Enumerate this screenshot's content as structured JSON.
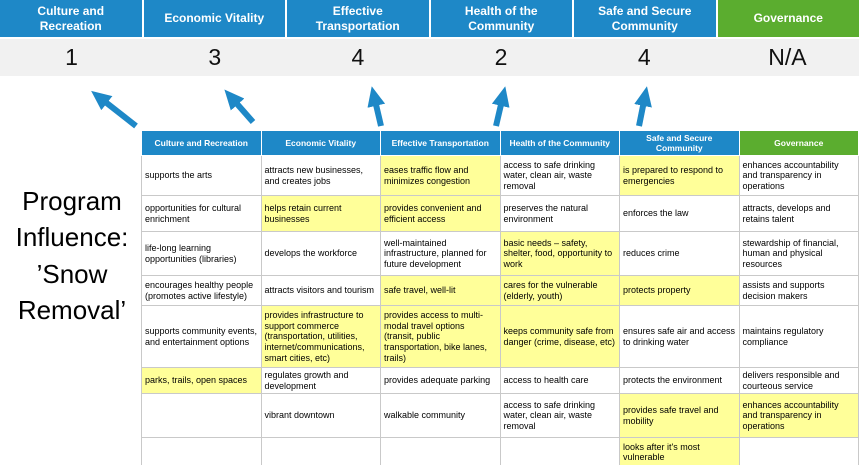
{
  "title": "Program Influence: ’Snow Removal’",
  "colors": {
    "pillar_blue": "#1E88C7",
    "pillar_green": "#5BAD2F",
    "highlight_yellow": "#FFFF99",
    "score_band_gray": "#F1F1F1",
    "arrow_blue": "#1E88C7"
  },
  "top": {
    "columns": [
      {
        "label": "Culture and Recreation",
        "score": "1"
      },
      {
        "label": "Economic Vitality",
        "score": "3"
      },
      {
        "label": "Effective Transportation",
        "score": "4"
      },
      {
        "label": "Health of the Community",
        "score": "2"
      },
      {
        "label": "Safe and Secure Community",
        "score": "4"
      },
      {
        "label": "Governance",
        "score": "N/A"
      }
    ]
  },
  "matrix": {
    "headers": [
      "Culture and Recreation",
      "Economic Vitality",
      "Effective Transportation",
      "Health of the Community",
      "Safe and Secure Community",
      "Governance"
    ],
    "rows": [
      [
        {
          "text": "supports the arts",
          "hl": false
        },
        {
          "text": "attracts new businesses, and creates jobs",
          "hl": false
        },
        {
          "text": "eases traffic flow and minimizes congestion",
          "hl": true
        },
        {
          "text": "access to safe drinking water, clean air, waste removal",
          "hl": false
        },
        {
          "text": "is prepared to respond to emergencies",
          "hl": true
        },
        {
          "text": "enhances accountability and transparency in operations",
          "hl": false
        }
      ],
      [
        {
          "text": "opportunities for cultural enrichment",
          "hl": false
        },
        {
          "text": "helps retain current businesses",
          "hl": true
        },
        {
          "text": "provides convenient and efficient access",
          "hl": true
        },
        {
          "text": "preserves the natural environment",
          "hl": false
        },
        {
          "text": "enforces the law",
          "hl": false
        },
        {
          "text": "attracts, develops and retains talent",
          "hl": false
        }
      ],
      [
        {
          "text": "life-long learning opportunities (libraries)",
          "hl": false
        },
        {
          "text": "develops the workforce",
          "hl": false
        },
        {
          "text": "well-maintained infrastructure, planned for future development",
          "hl": false
        },
        {
          "text": "basic needs – safety, shelter, food, opportunity to work",
          "hl": true
        },
        {
          "text": "reduces crime",
          "hl": false
        },
        {
          "text": "stewardship of financial, human and physical resources",
          "hl": false
        }
      ],
      [
        {
          "text": "encourages healthy people (promotes active lifestyle)",
          "hl": false
        },
        {
          "text": "attracts visitors and tourism",
          "hl": false
        },
        {
          "text": "safe travel, well-lit",
          "hl": true
        },
        {
          "text": "cares for the vulnerable (elderly, youth)",
          "hl": true
        },
        {
          "text": "protects property",
          "hl": true
        },
        {
          "text": "assists and supports decision makers",
          "hl": false
        }
      ],
      [
        {
          "text": "supports community events, and entertainment options",
          "hl": false
        },
        {
          "text": "provides infrastructure to support commerce (transportation, utilities, internet/communications, smart cities, etc)",
          "hl": true
        },
        {
          "text": "provides access to multi-modal travel options (transit, public transportation, bike lanes, trails)",
          "hl": true
        },
        {
          "text": "keeps community safe from danger (crime, disease, etc)",
          "hl": true
        },
        {
          "text": "ensures safe air and access to drinking water",
          "hl": false
        },
        {
          "text": "maintains regulatory compliance",
          "hl": false
        }
      ],
      [
        {
          "text": "parks, trails, open spaces",
          "hl": true
        },
        {
          "text": "regulates growth and development",
          "hl": false
        },
        {
          "text": "provides adequate parking",
          "hl": false
        },
        {
          "text": "access to health care",
          "hl": false
        },
        {
          "text": "protects the environment",
          "hl": false
        },
        {
          "text": "delivers responsible and courteous service",
          "hl": false
        }
      ],
      [
        {
          "text": "",
          "hl": false
        },
        {
          "text": "vibrant downtown",
          "hl": false
        },
        {
          "text": "walkable community",
          "hl": false
        },
        {
          "text": "access to safe drinking water, clean air, waste removal",
          "hl": false
        },
        {
          "text": "provides safe travel and mobility",
          "hl": true
        },
        {
          "text": "enhances accountability and transparency in operations",
          "hl": true
        }
      ],
      [
        {
          "text": "",
          "hl": false
        },
        {
          "text": "",
          "hl": false
        },
        {
          "text": "",
          "hl": false
        },
        {
          "text": "",
          "hl": false
        },
        {
          "text": "looks after it's most vulnerable",
          "hl": true
        },
        {
          "text": "",
          "hl": false
        }
      ]
    ]
  }
}
